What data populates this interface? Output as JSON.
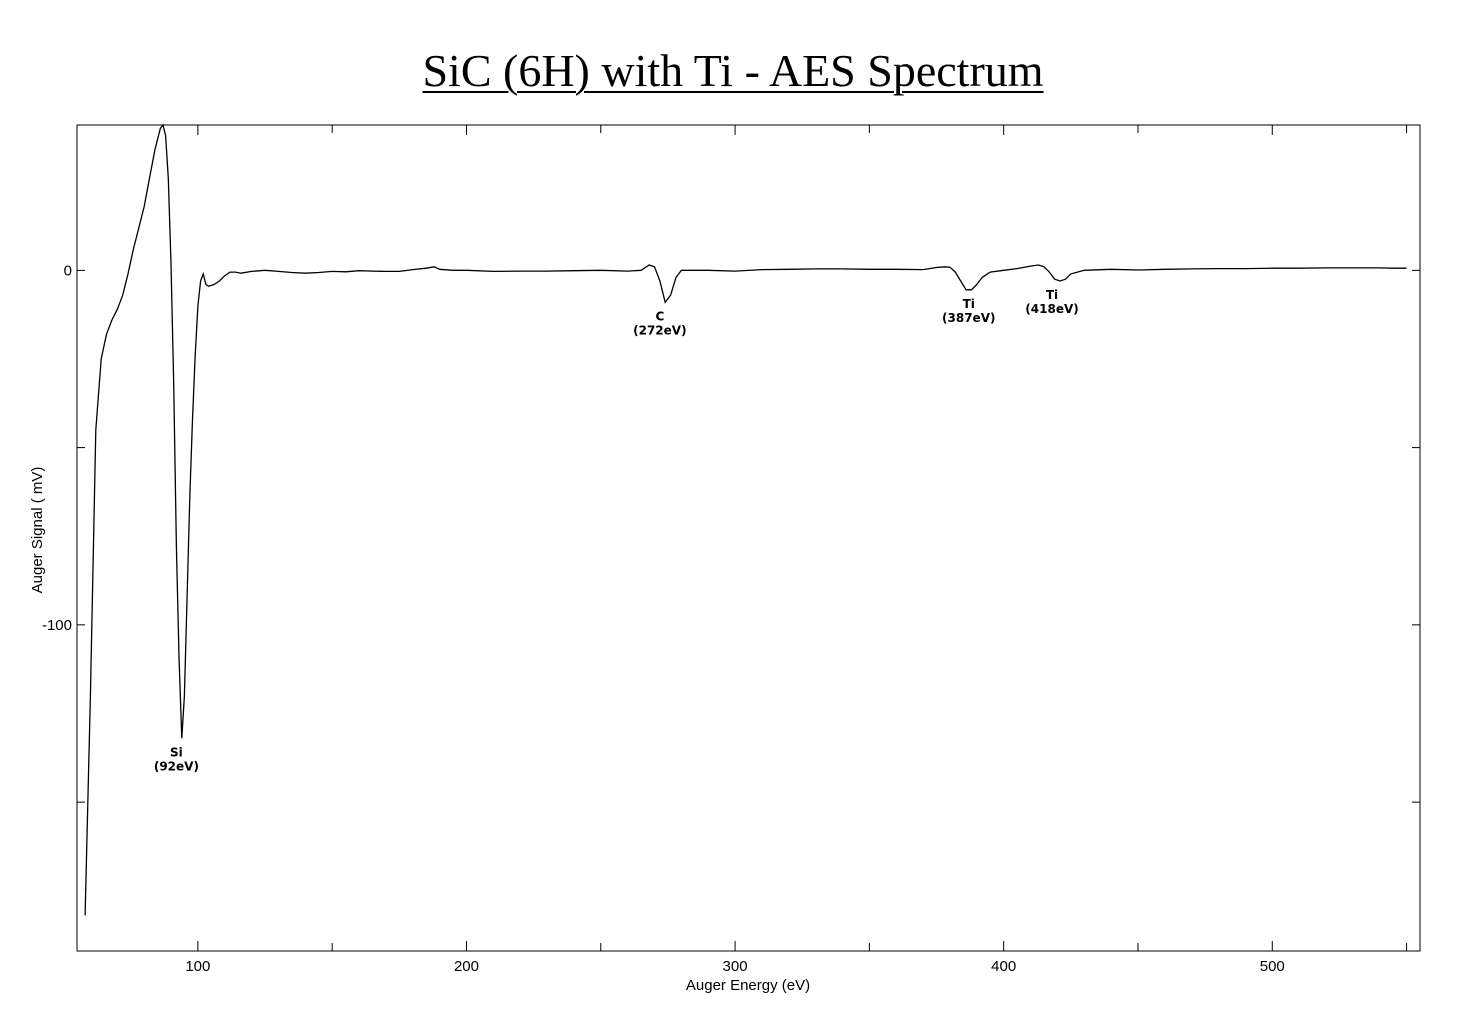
{
  "chart_data": {
    "type": "line",
    "title": "SiC (6H) with Ti - AES Spectrum",
    "xlabel": "Auger Energy (eV)",
    "ylabel": "Auger Signal ( mV)",
    "xlim": [
      55,
      555
    ],
    "ylim": [
      -192,
      41
    ],
    "x_ticks": [
      100,
      200,
      300,
      400,
      500
    ],
    "y_ticks": [
      0,
      -100
    ],
    "grid": false,
    "series": [
      {
        "x": [
          58,
          60,
          62,
          64,
          66,
          68,
          70,
          72,
          74,
          76,
          78,
          80,
          82,
          84,
          86,
          87,
          88,
          89,
          90,
          91,
          92,
          93,
          94,
          95,
          96,
          97,
          98,
          99,
          100,
          101,
          102,
          103,
          104,
          106,
          108,
          110,
          112,
          114,
          116,
          120,
          125,
          130,
          135,
          140,
          145,
          150,
          155,
          160,
          165,
          170,
          175,
          180,
          185,
          188,
          190,
          195,
          200,
          210,
          220,
          230,
          240,
          250,
          260,
          265,
          268,
          270,
          272,
          274,
          276,
          278,
          280,
          285,
          290,
          300,
          310,
          320,
          330,
          340,
          350,
          360,
          370,
          375,
          378,
          380,
          382,
          384,
          386,
          388,
          390,
          392,
          395,
          400,
          405,
          410,
          413,
          415,
          417,
          419,
          421,
          423,
          425,
          430,
          440,
          450,
          460,
          470,
          480,
          490,
          500,
          510,
          520,
          530,
          540,
          545,
          550
        ],
        "y": [
          -182,
          -120,
          -45,
          -25,
          -18,
          -14,
          -11,
          -7,
          -1,
          6,
          12,
          18,
          26,
          34,
          40,
          41,
          38,
          26,
          2,
          -32,
          -78,
          -110,
          -132,
          -120,
          -92,
          -64,
          -42,
          -24,
          -10,
          -3,
          -1,
          -4,
          -4.5,
          -4,
          -3,
          -1.5,
          -0.5,
          -0.5,
          -0.8,
          -0.3,
          0,
          -0.3,
          -0.6,
          -0.8,
          -0.6,
          -0.3,
          -0.4,
          -0.1,
          -0.2,
          -0.3,
          -0.3,
          0.2,
          0.6,
          1,
          0.3,
          0,
          0,
          -0.3,
          -0.2,
          -0.2,
          -0.1,
          0,
          -0.2,
          0,
          1.5,
          1,
          -3,
          -9,
          -7,
          -2,
          0,
          0,
          0,
          -0.2,
          0.2,
          0.3,
          0.4,
          0.4,
          0.3,
          0.3,
          0.2,
          0.8,
          1,
          0.9,
          -0.5,
          -3,
          -5.5,
          -5.5,
          -4,
          -2,
          -0.5,
          0,
          0.5,
          1.2,
          1.5,
          1,
          -0.5,
          -2.5,
          -3,
          -2.5,
          -1,
          0,
          0.3,
          0.1,
          0.3,
          0.4,
          0.5,
          0.5,
          0.6,
          0.6,
          0.7,
          0.7,
          0.7,
          0.6,
          0.6
        ]
      }
    ],
    "annotations": [
      {
        "x": 92,
        "y": -132,
        "label": "Si",
        "sublabel": "(92eV)"
      },
      {
        "x": 272,
        "y": -9,
        "label": "C",
        "sublabel": "(272eV)"
      },
      {
        "x": 387,
        "y": -5.5,
        "label": "Ti",
        "sublabel": "(387eV)"
      },
      {
        "x": 418,
        "y": -3,
        "label": "Ti",
        "sublabel": "(418eV)"
      }
    ]
  }
}
